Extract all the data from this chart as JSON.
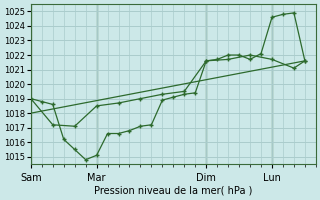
{
  "background_color": "#cce8e8",
  "grid_color": "#aacccc",
  "line_color": "#2d6a2d",
  "marker_color": "#2d6a2d",
  "xlabel": "Pression niveau de la mer( hPa )",
  "ylim": [
    1014.5,
    1025.5
  ],
  "yticks": [
    1015,
    1016,
    1017,
    1018,
    1019,
    1020,
    1021,
    1022,
    1023,
    1024,
    1025
  ],
  "xtick_labels": [
    "Sam",
    "Mar",
    "Dim",
    "Lun"
  ],
  "xtick_positions": [
    0,
    3,
    8,
    11
  ],
  "xlim": [
    0,
    13
  ],
  "vlines": [
    0,
    3,
    8,
    11
  ],
  "series1": {
    "x": [
      0,
      0.5,
      1.0,
      1.5,
      2.0,
      2.5,
      3.0,
      3.5,
      4.0,
      4.5,
      5.0,
      5.5,
      6.0,
      6.5,
      7.0,
      7.5,
      8.0,
      8.5,
      9.0,
      9.5,
      10.0,
      10.5,
      11.0,
      11.5,
      12.0,
      12.5
    ],
    "y": [
      1019.0,
      1018.8,
      1018.6,
      1016.2,
      1015.5,
      1014.8,
      1015.1,
      1016.6,
      1016.6,
      1016.8,
      1017.1,
      1017.2,
      1018.9,
      1019.1,
      1019.3,
      1019.4,
      1021.6,
      1021.7,
      1022.0,
      1022.0,
      1021.7,
      1022.1,
      1024.6,
      1024.8,
      1024.9,
      1021.6
    ]
  },
  "series2": {
    "x": [
      0,
      1.0,
      2.0,
      3.0,
      4.0,
      5.0,
      6.0,
      7.0,
      8.0,
      9.0,
      10.0,
      11.0,
      12.0,
      12.5
    ],
    "y": [
      1019.0,
      1017.2,
      1017.1,
      1018.5,
      1018.7,
      1019.0,
      1019.3,
      1019.5,
      1021.6,
      1021.7,
      1022.0,
      1021.7,
      1021.1,
      1021.6
    ]
  },
  "series3": {
    "x": [
      0,
      12.5
    ],
    "y": [
      1018.0,
      1021.6
    ]
  }
}
